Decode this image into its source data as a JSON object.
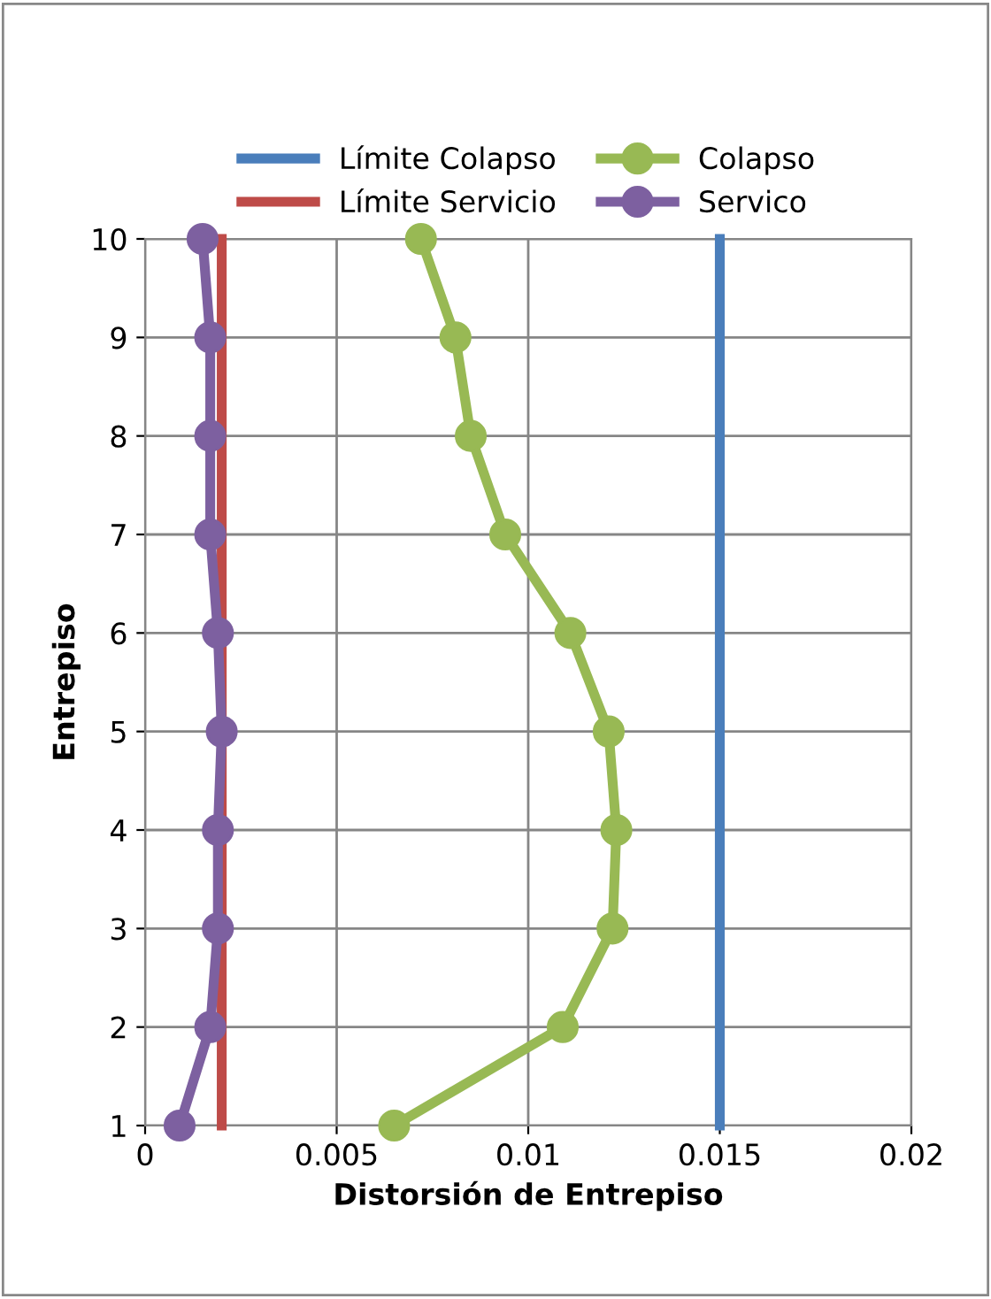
{
  "chart_data": {
    "type": "line",
    "xlabel": "Distorsión de Entrepiso",
    "ylabel": "Entrepiso",
    "xlim": [
      0,
      0.02
    ],
    "xticks": [
      0,
      0.005,
      0.01,
      0.015,
      0.02
    ],
    "ylim": [
      1,
      10
    ],
    "yticks": [
      1,
      2,
      3,
      4,
      5,
      6,
      7,
      8,
      9,
      10
    ],
    "grid": true,
    "legend": "top",
    "series": [
      {
        "name": "Límite Colapso",
        "color": "#4a7ebb",
        "marker": "none",
        "x": [
          0.015,
          0.015
        ],
        "values": [
          1,
          10
        ]
      },
      {
        "name": "Límite Servicio",
        "color": "#be4b48",
        "marker": "none",
        "x": [
          0.002,
          0.002
        ],
        "values": [
          1,
          10
        ]
      },
      {
        "name": "Colapso",
        "color": "#98b954",
        "marker": "circle",
        "x": [
          0.0065,
          0.0109,
          0.0122,
          0.0123,
          0.0121,
          0.0111,
          0.0094,
          0.0085,
          0.0081,
          0.0072
        ],
        "values": [
          1,
          2,
          3,
          4,
          5,
          6,
          7,
          8,
          9,
          10
        ]
      },
      {
        "name": "Servico",
        "color": "#7d60a0",
        "marker": "circle",
        "x": [
          0.0009,
          0.0017,
          0.0019,
          0.0019,
          0.002,
          0.0019,
          0.0017,
          0.0017,
          0.0017,
          0.0015
        ],
        "values": [
          1,
          2,
          3,
          4,
          5,
          6,
          7,
          8,
          9,
          10
        ]
      }
    ]
  }
}
